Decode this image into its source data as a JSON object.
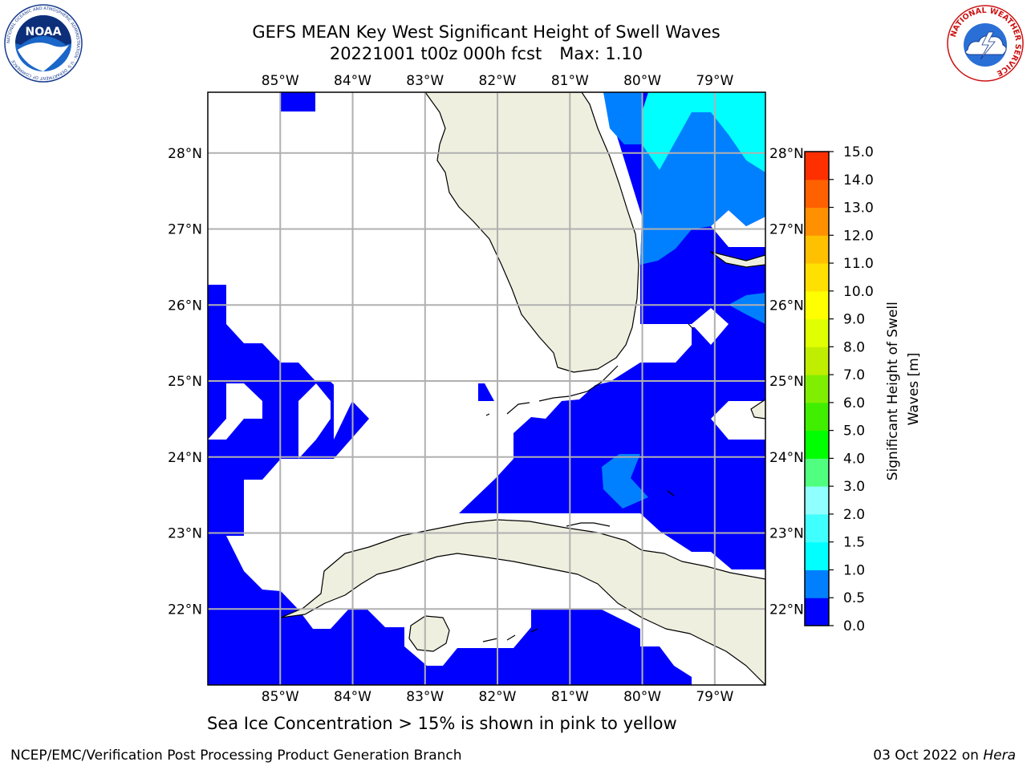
{
  "title": {
    "line1": "GEFS MEAN Key West Significant Height of Swell Waves",
    "line2_run": "20221001 t00z 000h fcst",
    "line2_max": "Max: 1.10"
  },
  "map": {
    "lon_labels": [
      "85°W",
      "84°W",
      "83°W",
      "82°W",
      "81°W",
      "80°W",
      "79°W"
    ],
    "lat_labels": [
      "28°N",
      "27°N",
      "26°N",
      "25°N",
      "24°N",
      "23°N",
      "22°N"
    ],
    "lon_range": [
      -86.0,
      -78.3
    ],
    "lat_range": [
      21.0,
      28.8
    ],
    "grid": true,
    "land_color": "#efefdf",
    "ocean_base_color": "#0000ff"
  },
  "colorbar": {
    "label_line1": "Significant Height of Swell",
    "label_line2": "Waves [m]",
    "ticks": [
      "15.0",
      "14.0",
      "13.0",
      "12.0",
      "11.0",
      "10.0",
      "9.0",
      "8.0",
      "7.0",
      "6.0",
      "5.0",
      "4.0",
      "3.0",
      "2.0",
      "1.5",
      "1.0",
      "0.5",
      "0.0"
    ],
    "colors": [
      "#0000ff",
      "#0080ff",
      "#00ffff",
      "#40ffff",
      "#90ffff",
      "#50ff80",
      "#00ff00",
      "#40ee00",
      "#80ee00",
      "#c0ee00",
      "#e0ff00",
      "#ffff00",
      "#ffe000",
      "#ffc000",
      "#ff9000",
      "#ff6000",
      "#ff3000",
      "#ff0000"
    ]
  },
  "note": "Sea Ice Concentration > 15% is shown in pink to yellow",
  "footer": {
    "left": "NCEP/EMC/Verification Post Processing Product Generation Branch",
    "right_date": "03 Oct 2022 on",
    "right_host": "Hera"
  },
  "logos": {
    "noaa": "NOAA",
    "noaa_ring": "NATIONAL OCEANIC AND ATMOSPHERIC ADMINISTRATION · U.S. DEPARTMENT OF COMMERCE",
    "nws_ring": "NATIONAL WEATHER SERVICE"
  },
  "icons": [
    "noaa-logo-icon",
    "nws-logo-icon"
  ]
}
